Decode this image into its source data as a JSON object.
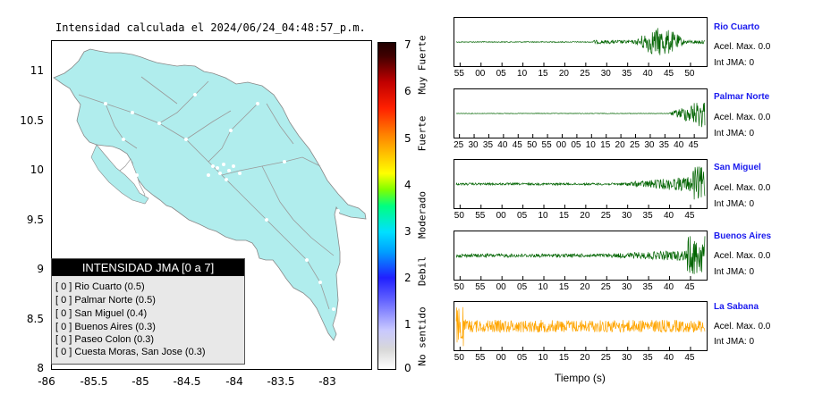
{
  "header": {
    "title": "Intensidad calculada el 2024/06/24_04:48:57_p.m."
  },
  "map": {
    "y_ticks": [
      "11",
      "10.5",
      "10",
      "9.5",
      "9",
      "8.5",
      "8"
    ],
    "x_ticks": [
      "-86",
      "-85.5",
      "-85",
      "-84.5",
      "-84",
      "-83.5",
      "-83"
    ],
    "land_color": "#b0eded",
    "sea_color": "#ffffff"
  },
  "legend": {
    "title": "INTENSIDAD JMA [0 a 7]",
    "items": [
      "[ 0 ] Rio Cuarto (0.5)",
      "[ 0 ] Palmar Norte (0.5)",
      "[ 0 ] San Miguel (0.4)",
      "[ 0 ] Buenos Aires (0.3)",
      "[ 0 ] Paseo Colon (0.3)",
      "[ 0 ] Cuesta Moras, San Jose (0.3)"
    ]
  },
  "colorbar": {
    "ticks": [
      "7",
      "6",
      "5",
      "4",
      "3",
      "2",
      "1",
      "0"
    ],
    "labels": [
      "Muy Fuerte",
      "Fuerte",
      "Moderado",
      "Debil",
      "No sentido"
    ]
  },
  "traces": {
    "xlabel": "Tiempo (s)",
    "stations": [
      {
        "name": "Rio Cuarto",
        "acel": "Acel. Max. 0.0",
        "int": "Int JMA: 0",
        "color": "#006400",
        "ticks": [
          "55",
          "00",
          "05",
          "10",
          "15",
          "20",
          "25",
          "30",
          "35",
          "40",
          "45",
          "50"
        ]
      },
      {
        "name": "Palmar Norte",
        "acel": "Acel. Max. 0.0",
        "int": "Int JMA: 0",
        "color": "#006400",
        "ticks": [
          "25",
          "30",
          "35",
          "40",
          "45",
          "50",
          "55",
          "00",
          "05",
          "10",
          "15",
          "20",
          "25",
          "30",
          "35",
          "40",
          "45"
        ]
      },
      {
        "name": "San Miguel",
        "acel": "Acel. Max. 0.0",
        "int": "Int JMA: 0",
        "color": "#006400",
        "ticks": [
          "50",
          "55",
          "00",
          "05",
          "10",
          "15",
          "20",
          "25",
          "30",
          "35",
          "40",
          "45"
        ]
      },
      {
        "name": "Buenos Aires",
        "acel": "Acel. Max. 0.0",
        "int": "Int JMA: 0",
        "color": "#006400",
        "ticks": [
          "50",
          "55",
          "00",
          "05",
          "10",
          "15",
          "20",
          "25",
          "30",
          "35",
          "40",
          "45"
        ]
      },
      {
        "name": "La Sabana",
        "acel": "Acel. Max. 0.0",
        "int": "Int JMA: 0",
        "color": "#ffa500",
        "ticks": [
          "50",
          "55",
          "00",
          "05",
          "10",
          "15",
          "20",
          "25",
          "30",
          "35",
          "40",
          "45"
        ]
      }
    ]
  },
  "chart_data": [
    {
      "type": "scatter",
      "title": "Intensidad calculada el 2024/06/24_04:48:57_p.m.",
      "xlim": [
        -86,
        -82.6
      ],
      "ylim": [
        8,
        11.3
      ],
      "legend": "bottom-left",
      "grid": false
    },
    {
      "type": "line",
      "xlabel": "Tiempo (s)",
      "series": [
        {
          "name": "Rio Cuarto",
          "values": []
        },
        {
          "name": "Palmar Norte",
          "values": []
        },
        {
          "name": "San Miguel",
          "values": []
        },
        {
          "name": "Buenos Aires",
          "values": []
        },
        {
          "name": "La Sabana",
          "values": []
        }
      ]
    }
  ]
}
